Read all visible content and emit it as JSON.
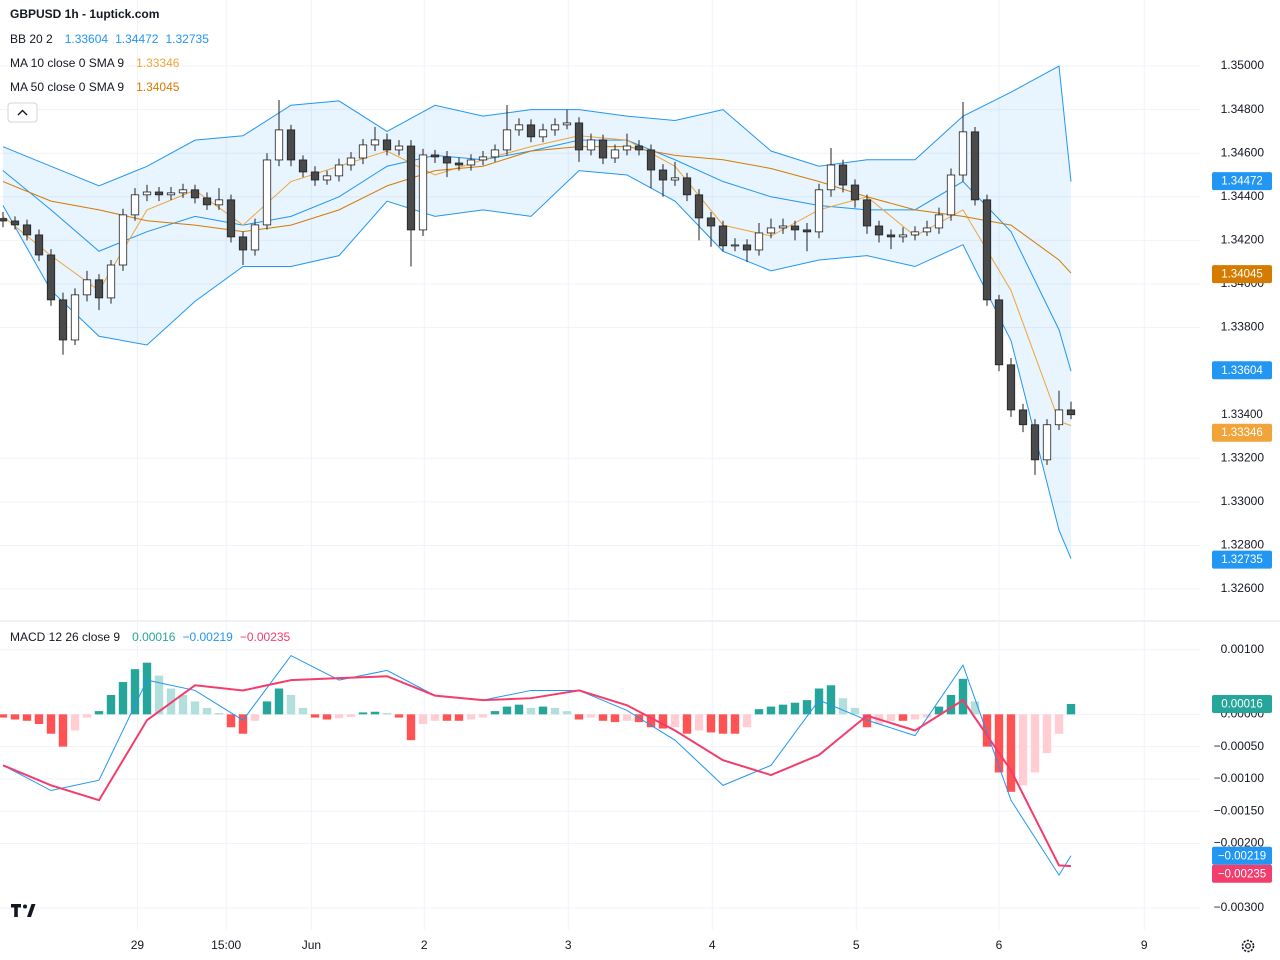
{
  "chart_data": [
    {
      "type": "candlestick",
      "title": "GBPUSD 1h - 1uptick.com",
      "xlim": [
        -0.25,
        99.75
      ],
      "xticks": [
        {
          "value": 11.2,
          "label": "29"
        },
        {
          "value": 18.6,
          "label": "15:00"
        },
        {
          "value": 25.7,
          "label": "Jun"
        },
        {
          "value": 35.1,
          "label": "2"
        },
        {
          "value": 47.1,
          "label": "3"
        },
        {
          "value": 59.1,
          "label": "4"
        },
        {
          "value": 71.1,
          "label": "5"
        },
        {
          "value": 83,
          "label": "6"
        },
        {
          "value": 95.1,
          "label": "9"
        }
      ],
      "ylim": [
        1.32458,
        1.35303
      ],
      "yticks": [
        {
          "value": 1.326,
          "label": "1.32600"
        },
        {
          "value": 1.328,
          "label": "1.32800"
        },
        {
          "value": 1.33,
          "label": "1.33000"
        },
        {
          "value": 1.332,
          "label": "1.33200"
        },
        {
          "value": 1.338,
          "label": "1.33800"
        },
        {
          "value": 1.34,
          "label": "1.34000"
        },
        {
          "value": 1.342,
          "label": "1.34200"
        },
        {
          "value": 1.344,
          "label": "1.34400"
        },
        {
          "value": 1.346,
          "label": "1.34600"
        },
        {
          "value": 1.348,
          "label": "1.34800"
        },
        {
          "value": 1.35,
          "label": "1.35000"
        }
      ],
      "grid": true,
      "up_color": "#ffffff",
      "down_color": "#4a4a4a",
      "wick_color": "#222222",
      "last_price": {
        "value": 1.334,
        "label": "1.33400"
      },
      "ohlc": [
        [
          1.343,
          1.3433,
          1.3426,
          1.34289
        ],
        [
          1.34289,
          1.3431,
          1.3425,
          1.34271
        ],
        [
          1.34271,
          1.34295,
          1.342,
          1.34225
        ],
        [
          1.34225,
          1.3425,
          1.34105,
          1.34133
        ],
        [
          1.34133,
          1.3416,
          1.339,
          1.33927
        ],
        [
          1.33927,
          1.3396,
          1.33675,
          1.33743
        ],
        [
          1.33743,
          1.3398,
          1.3372,
          1.3395
        ],
        [
          1.3395,
          1.3406,
          1.3392,
          1.34019
        ],
        [
          1.34019,
          1.34045,
          1.3388,
          1.33936
        ],
        [
          1.33936,
          1.3411,
          1.3391,
          1.34087
        ],
        [
          1.34087,
          1.34345,
          1.3406,
          1.34317
        ],
        [
          1.34317,
          1.3444,
          1.3429,
          1.34409
        ],
        [
          1.34409,
          1.34455,
          1.3438,
          1.34422
        ],
        [
          1.34422,
          1.34445,
          1.3438,
          1.34409
        ],
        [
          1.34409,
          1.34445,
          1.34385,
          1.34418
        ],
        [
          1.34418,
          1.3446,
          1.34395,
          1.34432
        ],
        [
          1.34432,
          1.34455,
          1.3437,
          1.34395
        ],
        [
          1.34395,
          1.3442,
          1.3434,
          1.34363
        ],
        [
          1.34363,
          1.3444,
          1.3434,
          1.34386
        ],
        [
          1.34386,
          1.3441,
          1.3419,
          1.34216
        ],
        [
          1.34216,
          1.3424,
          1.34087,
          1.34156
        ],
        [
          1.34156,
          1.343,
          1.3413,
          1.34271
        ],
        [
          1.34271,
          1.346,
          1.3425,
          1.34569
        ],
        [
          1.34569,
          1.34844,
          1.3454,
          1.34707
        ],
        [
          1.34707,
          1.3473,
          1.3454,
          1.34569
        ],
        [
          1.34569,
          1.3459,
          1.3449,
          1.34514
        ],
        [
          1.34514,
          1.3454,
          1.3445,
          1.34477
        ],
        [
          1.34477,
          1.3452,
          1.34455,
          1.34496
        ],
        [
          1.34496,
          1.34575,
          1.3447,
          1.34546
        ],
        [
          1.34546,
          1.34605,
          1.3452,
          1.34578
        ],
        [
          1.34578,
          1.34665,
          1.3455,
          1.34638
        ],
        [
          1.34638,
          1.3472,
          1.3461,
          1.34661
        ],
        [
          1.34661,
          1.3469,
          1.3459,
          1.34615
        ],
        [
          1.34615,
          1.3466,
          1.3459,
          1.34633
        ],
        [
          1.34633,
          1.3466,
          1.3408,
          1.34248
        ],
        [
          1.34248,
          1.3462,
          1.3422,
          1.34592
        ],
        [
          1.34592,
          1.34615,
          1.34555,
          1.34583
        ],
        [
          1.34583,
          1.3461,
          1.3449,
          1.34555
        ],
        [
          1.34555,
          1.3458,
          1.3452,
          1.34546
        ],
        [
          1.34546,
          1.34595,
          1.3452,
          1.34569
        ],
        [
          1.34569,
          1.3461,
          1.34545,
          1.34583
        ],
        [
          1.34583,
          1.3464,
          1.3456,
          1.34615
        ],
        [
          1.34615,
          1.34821,
          1.3459,
          1.34707
        ],
        [
          1.34707,
          1.3476,
          1.3468,
          1.3473
        ],
        [
          1.3473,
          1.34755,
          1.3465,
          1.34675
        ],
        [
          1.34675,
          1.34735,
          1.3465,
          1.34707
        ],
        [
          1.34707,
          1.3476,
          1.3468,
          1.3473
        ],
        [
          1.3473,
          1.348,
          1.3471,
          1.34739
        ],
        [
          1.34739,
          1.34765,
          1.3456,
          1.34615
        ],
        [
          1.34615,
          1.3469,
          1.3459,
          1.34661
        ],
        [
          1.34661,
          1.34685,
          1.3455,
          1.34578
        ],
        [
          1.34578,
          1.3464,
          1.34555,
          1.34615
        ],
        [
          1.34615,
          1.3469,
          1.3459,
          1.34633
        ],
        [
          1.34633,
          1.3466,
          1.3459,
          1.34615
        ],
        [
          1.34615,
          1.3464,
          1.3444,
          1.34523
        ],
        [
          1.34523,
          1.3455,
          1.344,
          1.34477
        ],
        [
          1.34477,
          1.3456,
          1.3445,
          1.34487
        ],
        [
          1.34487,
          1.3451,
          1.3438,
          1.34409
        ],
        [
          1.34409,
          1.34435,
          1.342,
          1.34303
        ],
        [
          1.34303,
          1.3433,
          1.3417,
          1.34266
        ],
        [
          1.34266,
          1.3429,
          1.3415,
          1.34175
        ],
        [
          1.34175,
          1.3421,
          1.3415,
          1.34179
        ],
        [
          1.34179,
          1.34205,
          1.341,
          1.34156
        ],
        [
          1.34156,
          1.3428,
          1.3413,
          1.34234
        ],
        [
          1.34234,
          1.343,
          1.3421,
          1.34257
        ],
        [
          1.34257,
          1.343,
          1.3423,
          1.34266
        ],
        [
          1.34266,
          1.3429,
          1.342,
          1.34248
        ],
        [
          1.34248,
          1.3428,
          1.3415,
          1.34239
        ],
        [
          1.34239,
          1.3446,
          1.3421,
          1.34432
        ],
        [
          1.34432,
          1.34624,
          1.344,
          1.34546
        ],
        [
          1.34546,
          1.3457,
          1.3442,
          1.34454
        ],
        [
          1.34454,
          1.3448,
          1.3435,
          1.34386
        ],
        [
          1.34386,
          1.3441,
          1.3423,
          1.34266
        ],
        [
          1.34266,
          1.3429,
          1.3419,
          1.34225
        ],
        [
          1.34225,
          1.3425,
          1.3416,
          1.34216
        ],
        [
          1.34216,
          1.3426,
          1.3419,
          1.34225
        ],
        [
          1.34225,
          1.34265,
          1.342,
          1.34239
        ],
        [
          1.34239,
          1.3429,
          1.3422,
          1.34257
        ],
        [
          1.34257,
          1.3435,
          1.3423,
          1.34317
        ],
        [
          1.34317,
          1.3453,
          1.3429,
          1.345
        ],
        [
          1.345,
          1.34835,
          1.3447,
          1.34698
        ],
        [
          1.34698,
          1.3472,
          1.3436,
          1.34386
        ],
        [
          1.34386,
          1.3441,
          1.339,
          1.33927
        ],
        [
          1.33927,
          1.3395,
          1.336,
          1.33629
        ],
        [
          1.33629,
          1.3366,
          1.3339,
          1.33422
        ],
        [
          1.33422,
          1.3345,
          1.3332,
          1.33354
        ],
        [
          1.33354,
          1.3338,
          1.33124,
          1.33193
        ],
        [
          1.33193,
          1.3338,
          1.3317,
          1.33354
        ],
        [
          1.33354,
          1.3351,
          1.3333,
          1.33422
        ],
        [
          1.33422,
          1.3346,
          1.3338,
          1.334
        ]
      ],
      "line_x": [
        0,
        4,
        8,
        12,
        16,
        20,
        24,
        28,
        32,
        36,
        40,
        44,
        48,
        52,
        56,
        60,
        64,
        68,
        72,
        76,
        80,
        84,
        88,
        89
      ],
      "indicators": [
        {
          "name": "BB 20 2",
          "values": [
            1.33604,
            1.34472,
            1.32735
          ],
          "color": "#2196f3",
          "fill": "rgba(33,150,243,0.1)",
          "lines": [
            [
              1.3452,
              1.3434,
              1.3415,
              1.3424,
              1.3431,
              1.3427,
              1.3431,
              1.344,
              1.3454,
              1.3459,
              1.3457,
              1.3461,
              1.3466,
              1.3466,
              1.3457,
              1.3447,
              1.344,
              1.3436,
              1.3434,
              1.3434,
              1.3447,
              1.3424,
              1.3379,
              1.336
            ],
            [
              1.3463,
              1.3454,
              1.3445,
              1.3454,
              1.3466,
              1.3468,
              1.3482,
              1.3484,
              1.347,
              1.3482,
              1.3477,
              1.348,
              1.348,
              1.3477,
              1.3475,
              1.348,
              1.3461,
              1.3454,
              1.3457,
              1.3457,
              1.3477,
              1.3488,
              1.35,
              1.3447
            ],
            [
              1.3436,
              1.3397,
              1.3376,
              1.3372,
              1.3392,
              1.3408,
              1.3408,
              1.3413,
              1.3438,
              1.3431,
              1.3434,
              1.3431,
              1.3452,
              1.345,
              1.3438,
              1.3415,
              1.3406,
              1.3411,
              1.3413,
              1.3408,
              1.3418,
              1.3374,
              1.3287,
              1.3274
            ]
          ]
        },
        {
          "name": "MA 10 close 0 SMA 9",
          "values": [
            1.33346
          ],
          "color": "#f0a43a",
          "lines": [
            [
              1.3431,
              1.3413,
              1.3397,
              1.3434,
              1.3443,
              1.3427,
              1.3447,
              1.3454,
              1.3461,
              1.345,
              1.3457,
              1.3463,
              1.3468,
              1.3466,
              1.3454,
              1.3427,
              1.3422,
              1.3434,
              1.344,
              1.3422,
              1.3434,
              1.3397,
              1.3337,
              1.3335
            ]
          ]
        },
        {
          "name": "MA 50 close 0 SMA 9",
          "values": [
            1.34045
          ],
          "color": "#d47b00",
          "lines": [
            [
              1.3447,
              1.3438,
              1.3434,
              1.3429,
              1.3427,
              1.3424,
              1.3427,
              1.3434,
              1.3445,
              1.3452,
              1.3454,
              1.3461,
              1.3463,
              1.3463,
              1.3459,
              1.3457,
              1.3453,
              1.3447,
              1.344,
              1.3434,
              1.3431,
              1.3427,
              1.3411,
              1.3405
            ]
          ]
        }
      ]
    },
    {
      "type": "macd",
      "ylim": [
        -0.00334,
        0.00143
      ],
      "yticks": [
        {
          "value": 0.001,
          "label": "0.00100"
        },
        {
          "value": 0,
          "label": "0.00000"
        },
        {
          "value": -0.0005,
          "label": "−0.00050"
        },
        {
          "value": -0.001,
          "label": "−0.00100"
        },
        {
          "value": -0.0015,
          "label": "−0.00150"
        },
        {
          "value": -0.002,
          "label": "−0.00200"
        },
        {
          "value": -0.003,
          "label": "−0.00300"
        }
      ],
      "indicators": [
        {
          "name": "MACD 12 26 close 9",
          "values": [
            0.00016,
            -0.00219,
            -0.00235
          ],
          "value_labels": [
            "0.00016",
            "−0.00219",
            "−0.00235"
          ],
          "colors": [
            "#26a69a",
            "#2196f3",
            "#f23d6d"
          ]
        }
      ],
      "histogram_colors": [
        "#26a69a",
        "#b2dfdb",
        "#ff5252",
        "#ffcdd2"
      ],
      "histogram": [
        -5e-05,
        -8e-05,
        -0.0001,
        -0.00015,
        -0.0003,
        -0.0005,
        -0.00025,
        -5e-05,
        5e-05,
        0.0003,
        0.0005,
        0.0007,
        0.0008,
        0.0006,
        0.0004,
        0.0003,
        0.0002,
        0.0001,
        2e-05,
        -0.0002,
        -0.0003,
        -0.0001,
        0.0002,
        0.0004,
        0.0003,
        0.0001,
        -5e-05,
        -8e-05,
        -6e-05,
        -4e-05,
        3e-05,
        4e-05,
        2e-05,
        -5e-05,
        -0.0004,
        -0.00015,
        -0.0001,
        -0.0001,
        -0.0001,
        -8e-05,
        -5e-05,
        5e-05,
        0.00012,
        0.00015,
        0.0001,
        0.00012,
        0.0001,
        5e-05,
        -8e-05,
        -5e-05,
        -0.0001,
        -0.00012,
        -0.0001,
        -0.00012,
        -0.0002,
        -0.00022,
        -0.0002,
        -0.0003,
        -0.00025,
        -0.00028,
        -0.0003,
        -0.0003,
        -0.0002,
        8e-05,
        0.00012,
        0.00015,
        0.00018,
        0.00022,
        0.0004,
        0.00045,
        0.00025,
        0.0001,
        -0.0002,
        -0.00015,
        -0.0001,
        -0.0001,
        -8e-05,
        -5e-05,
        0.00012,
        0.0003,
        0.00055,
        0.0002,
        -0.0005,
        -0.0009,
        -0.0012,
        -0.0011,
        -0.0009,
        -0.0006,
        -0.0003,
        0.00016
      ],
      "lines": [
        [
          -0.00079,
          -0.00118,
          -0.00102,
          0.00053,
          0.00037,
          -9e-05,
          0.00091,
          0.00053,
          0.00068,
          0.00029,
          0.00022,
          0.00037,
          0.00037,
          6e-05,
          -0.0004,
          -0.0011,
          -0.00079,
          0.00022,
          -9e-05,
          -0.00033,
          0.00076,
          -0.00133,
          -0.00249,
          -0.00219
        ],
        [
          -0.00079,
          -0.0011,
          -0.00133,
          -9e-05,
          0.00045,
          0.00037,
          0.00053,
          0.00056,
          0.00059,
          0.00029,
          0.00022,
          0.00025,
          0.00037,
          0.00014,
          -0.00025,
          -0.00071,
          -0.00094,
          -0.00063,
          -2e-05,
          -0.00025,
          0.00022,
          -0.00087,
          -0.00234,
          -0.00235
        ]
      ]
    }
  ]
}
